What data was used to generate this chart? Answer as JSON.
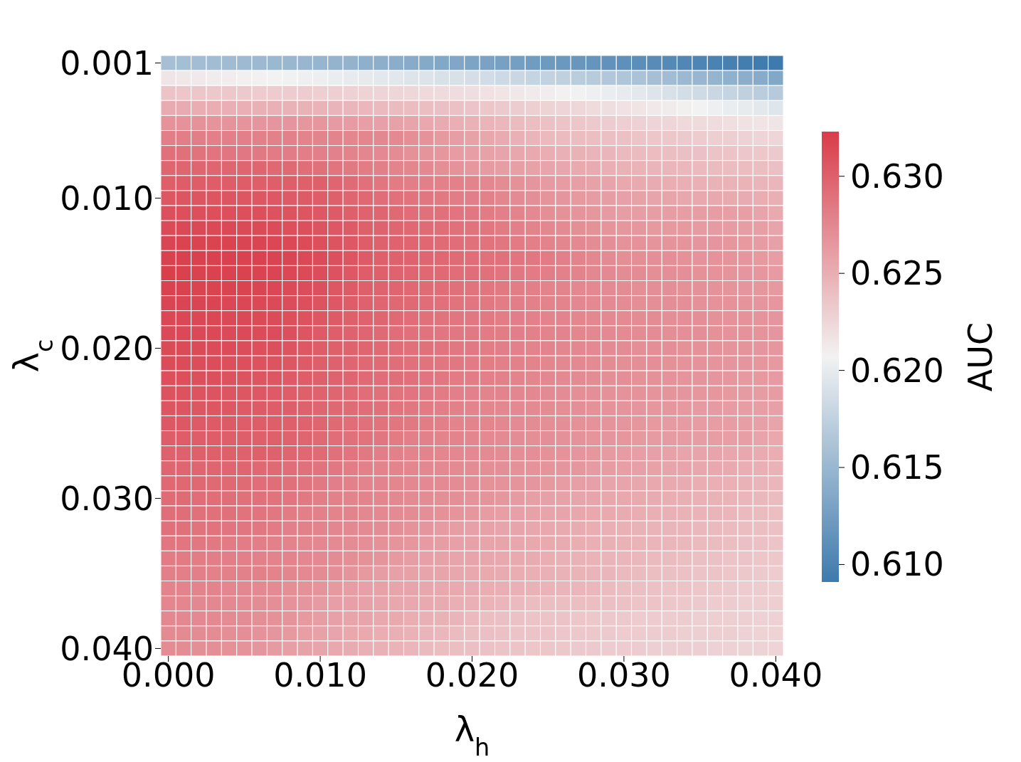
{
  "chart_data": {
    "type": "heatmap",
    "xlabel": "λ$_{h}$",
    "ylabel": "λ$_{c}$",
    "clabel": "AUC",
    "categories": [
      "0.000",
      null,
      null,
      null,
      null,
      null,
      null,
      null,
      null,
      null,
      "0.010",
      null,
      null,
      null,
      null,
      null,
      null,
      null,
      null,
      null,
      "0.020",
      null,
      null,
      null,
      null,
      null,
      null,
      null,
      null,
      null,
      "0.030",
      null,
      null,
      null,
      null,
      null,
      null,
      null,
      null,
      null,
      "0.040"
    ],
    "y_categories": [
      "0.001",
      null,
      null,
      null,
      null,
      null,
      null,
      null,
      null,
      "0.010",
      null,
      null,
      null,
      null,
      null,
      null,
      null,
      null,
      null,
      "0.020",
      null,
      null,
      null,
      null,
      null,
      null,
      null,
      null,
      null,
      "0.030",
      null,
      null,
      null,
      null,
      null,
      null,
      null,
      null,
      null,
      "0.040"
    ],
    "clim": [
      0.6091,
      0.6323
    ],
    "cticks": [
      {
        "value": 0.61,
        "label": "0.610"
      },
      {
        "value": 0.615,
        "label": "0.615"
      },
      {
        "value": 0.62,
        "label": "0.620"
      },
      {
        "value": 0.625,
        "label": "0.625"
      },
      {
        "value": 0.63,
        "label": "0.630"
      }
    ],
    "cells": [
      [
        0.6158,
        0.6157,
        0.6156,
        0.6155,
        0.6154,
        0.6153,
        0.6152,
        0.6151,
        0.615,
        0.6149,
        0.6148,
        0.6146,
        0.6145,
        0.6143,
        0.6142,
        0.614,
        0.6138,
        0.6137,
        0.6135,
        0.6134,
        0.6132,
        0.613,
        0.6128,
        0.6126,
        0.6124,
        0.6122,
        0.612,
        0.6118,
        0.6116,
        0.6114,
        0.6112,
        0.611,
        0.6108,
        0.6106,
        0.6104,
        0.6102,
        0.6099,
        0.6097,
        0.6095,
        0.6093,
        0.6091
      ],
      [
        0.6215,
        0.6214,
        0.6213,
        0.6211,
        0.621,
        0.6209,
        0.6208,
        0.6207,
        0.6206,
        0.6204,
        0.6203,
        0.6202,
        0.62,
        0.6199,
        0.6197,
        0.6196,
        0.6194,
        0.6193,
        0.6191,
        0.619,
        0.6188,
        0.6186,
        0.6183,
        0.6181,
        0.6178,
        0.6176,
        0.6174,
        0.6171,
        0.6169,
        0.6166,
        0.6164,
        0.6161,
        0.6158,
        0.6155,
        0.6152,
        0.6149,
        0.6147,
        0.6144,
        0.6141,
        0.6138,
        0.6135
      ],
      [
        0.6236,
        0.6235,
        0.6235,
        0.6234,
        0.6234,
        0.6233,
        0.6232,
        0.6232,
        0.6231,
        0.6231,
        0.623,
        0.6229,
        0.6228,
        0.6227,
        0.6226,
        0.6225,
        0.6224,
        0.6223,
        0.6222,
        0.6221,
        0.622,
        0.6218,
        0.6216,
        0.6214,
        0.6212,
        0.621,
        0.6208,
        0.6206,
        0.6204,
        0.6202,
        0.62,
        0.6197,
        0.6194,
        0.619,
        0.6187,
        0.6184,
        0.6181,
        0.6178,
        0.6174,
        0.6171,
        0.6168
      ],
      [
        0.6252,
        0.6252,
        0.6251,
        0.6251,
        0.625,
        0.625,
        0.6249,
        0.6249,
        0.6248,
        0.6248,
        0.6247,
        0.6246,
        0.6245,
        0.6244,
        0.6243,
        0.6242,
        0.6241,
        0.624,
        0.6239,
        0.6238,
        0.6237,
        0.6235,
        0.6233,
        0.6231,
        0.6229,
        0.6227,
        0.6226,
        0.6224,
        0.6222,
        0.622,
        0.6218,
        0.6216,
        0.6213,
        0.6211,
        0.6209,
        0.6207,
        0.6204,
        0.6202,
        0.62,
        0.6197,
        0.6195
      ],
      [
        0.6268,
        0.6268,
        0.6268,
        0.6267,
        0.6267,
        0.6267,
        0.6266,
        0.6266,
        0.6266,
        0.6265,
        0.6265,
        0.6263,
        0.6262,
        0.626,
        0.6259,
        0.6258,
        0.6256,
        0.6254,
        0.6252,
        0.625,
        0.6248,
        0.6246,
        0.6244,
        0.6242,
        0.624,
        0.6238,
        0.6237,
        0.6235,
        0.6233,
        0.6231,
        0.6229,
        0.6228,
        0.6226,
        0.6225,
        0.6223,
        0.6222,
        0.6221,
        0.6219,
        0.6218,
        0.6216,
        0.6215
      ],
      [
        0.6281,
        0.6281,
        0.6281,
        0.628,
        0.628,
        0.628,
        0.6279,
        0.6279,
        0.6279,
        0.6278,
        0.6278,
        0.6277,
        0.6276,
        0.6276,
        0.6275,
        0.6274,
        0.6271,
        0.6268,
        0.6264,
        0.6261,
        0.6258,
        0.6255,
        0.6252,
        0.6249,
        0.6246,
        0.6243,
        0.6242,
        0.6241,
        0.624,
        0.6239,
        0.6238,
        0.6237,
        0.6235,
        0.6234,
        0.6233,
        0.6232,
        0.623,
        0.6229,
        0.6228,
        0.6226,
        0.6225
      ],
      [
        0.629,
        0.6289,
        0.6288,
        0.6287,
        0.6286,
        0.6285,
        0.6284,
        0.6283,
        0.6282,
        0.6281,
        0.628,
        0.6279,
        0.6277,
        0.6276,
        0.6274,
        0.6272,
        0.6269,
        0.6267,
        0.6265,
        0.6262,
        0.626,
        0.6258,
        0.6256,
        0.6255,
        0.6253,
        0.6251,
        0.6249,
        0.6248,
        0.6246,
        0.6245,
        0.6243,
        0.6242,
        0.6241,
        0.624,
        0.6239,
        0.6238,
        0.6237,
        0.6236,
        0.6235,
        0.6234,
        0.6233
      ],
      [
        0.6297,
        0.6297,
        0.6297,
        0.6297,
        0.6296,
        0.6296,
        0.6296,
        0.6295,
        0.6294,
        0.6292,
        0.629,
        0.6287,
        0.6284,
        0.6282,
        0.628,
        0.6278,
        0.6276,
        0.6274,
        0.6271,
        0.6268,
        0.6265,
        0.6263,
        0.6261,
        0.626,
        0.6258,
        0.6257,
        0.6255,
        0.6253,
        0.6252,
        0.625,
        0.6248,
        0.6247,
        0.6246,
        0.6245,
        0.6244,
        0.6243,
        0.6242,
        0.6241,
        0.6241,
        0.624,
        0.6239
      ],
      [
        0.6301,
        0.6302,
        0.6302,
        0.6302,
        0.6302,
        0.6302,
        0.6301,
        0.6301,
        0.6301,
        0.63,
        0.63,
        0.6297,
        0.6293,
        0.6289,
        0.6286,
        0.6283,
        0.6281,
        0.628,
        0.6279,
        0.6279,
        0.6278,
        0.6275,
        0.6272,
        0.6269,
        0.6266,
        0.6263,
        0.6262,
        0.626,
        0.6258,
        0.6256,
        0.6254,
        0.6253,
        0.6252,
        0.6251,
        0.625,
        0.6249,
        0.6248,
        0.6247,
        0.6247,
        0.6246,
        0.6245
      ],
      [
        0.6306,
        0.6307,
        0.6307,
        0.6307,
        0.6307,
        0.6306,
        0.6306,
        0.6305,
        0.6304,
        0.6303,
        0.6302,
        0.63,
        0.6297,
        0.6295,
        0.6292,
        0.629,
        0.6288,
        0.6286,
        0.6284,
        0.6282,
        0.6281,
        0.6279,
        0.6276,
        0.6273,
        0.627,
        0.6267,
        0.6266,
        0.6264,
        0.6262,
        0.6261,
        0.6259,
        0.6258,
        0.6257,
        0.6256,
        0.6255,
        0.6254,
        0.6254,
        0.6253,
        0.6252,
        0.6251,
        0.625
      ],
      [
        0.631,
        0.6311,
        0.6311,
        0.6311,
        0.6311,
        0.6311,
        0.631,
        0.6309,
        0.6308,
        0.6307,
        0.6305,
        0.6303,
        0.63,
        0.6298,
        0.6296,
        0.6294,
        0.6292,
        0.629,
        0.6289,
        0.6287,
        0.6285,
        0.6283,
        0.628,
        0.6277,
        0.6274,
        0.6271,
        0.6269,
        0.6267,
        0.6265,
        0.6263,
        0.6261,
        0.6261,
        0.6261,
        0.6261,
        0.6261,
        0.6261,
        0.6261,
        0.626,
        0.626,
        0.6257,
        0.6253
      ],
      [
        0.6314,
        0.6315,
        0.6315,
        0.6315,
        0.6315,
        0.6314,
        0.6314,
        0.6313,
        0.6311,
        0.631,
        0.6308,
        0.6305,
        0.6303,
        0.63,
        0.6298,
        0.6297,
        0.6295,
        0.6293,
        0.6292,
        0.629,
        0.6288,
        0.6286,
        0.6283,
        0.628,
        0.6277,
        0.6275,
        0.6273,
        0.6271,
        0.6269,
        0.6267,
        0.6265,
        0.6265,
        0.6264,
        0.6264,
        0.6264,
        0.6263,
        0.6263,
        0.6262,
        0.6261,
        0.626,
        0.6256
      ],
      [
        0.6317,
        0.6318,
        0.6318,
        0.6318,
        0.6318,
        0.6317,
        0.6317,
        0.6316,
        0.6315,
        0.6313,
        0.6311,
        0.6308,
        0.6305,
        0.6302,
        0.6299,
        0.6298,
        0.6296,
        0.6295,
        0.6293,
        0.6292,
        0.629,
        0.6288,
        0.6286,
        0.6283,
        0.628,
        0.6278,
        0.6276,
        0.6274,
        0.6272,
        0.627,
        0.6268,
        0.6268,
        0.6267,
        0.6267,
        0.6267,
        0.6266,
        0.6266,
        0.6265,
        0.6264,
        0.6262,
        0.6259
      ],
      [
        0.632,
        0.632,
        0.632,
        0.632,
        0.632,
        0.6319,
        0.6319,
        0.6318,
        0.6317,
        0.6315,
        0.6313,
        0.631,
        0.6307,
        0.6304,
        0.63,
        0.6299,
        0.6298,
        0.6296,
        0.6295,
        0.6293,
        0.6292,
        0.629,
        0.6289,
        0.6287,
        0.6285,
        0.6283,
        0.628,
        0.6277,
        0.6275,
        0.6273,
        0.6271,
        0.6271,
        0.627,
        0.627,
        0.6269,
        0.6268,
        0.6268,
        0.6267,
        0.6266,
        0.6264,
        0.6261
      ],
      [
        0.6322,
        0.632,
        0.6319,
        0.6319,
        0.6319,
        0.6319,
        0.6318,
        0.6317,
        0.6316,
        0.6314,
        0.6312,
        0.6309,
        0.6305,
        0.6302,
        0.63,
        0.6298,
        0.6297,
        0.6295,
        0.6294,
        0.6292,
        0.6291,
        0.6289,
        0.6287,
        0.6285,
        0.6283,
        0.6281,
        0.6279,
        0.6277,
        0.6275,
        0.6274,
        0.6272,
        0.6272,
        0.6271,
        0.627,
        0.627,
        0.6269,
        0.6268,
        0.6267,
        0.6266,
        0.6265,
        0.6263
      ],
      [
        0.6319,
        0.6319,
        0.6318,
        0.6318,
        0.6318,
        0.6318,
        0.6317,
        0.6316,
        0.6314,
        0.6312,
        0.631,
        0.6306,
        0.6303,
        0.63,
        0.6298,
        0.6297,
        0.6295,
        0.6293,
        0.6292,
        0.629,
        0.6288,
        0.6286,
        0.6284,
        0.6282,
        0.628,
        0.6278,
        0.6277,
        0.6275,
        0.6274,
        0.6273,
        0.6272,
        0.6271,
        0.6271,
        0.627,
        0.6269,
        0.6269,
        0.6268,
        0.6267,
        0.6266,
        0.6265,
        0.6264
      ],
      [
        0.6317,
        0.6317,
        0.6317,
        0.6317,
        0.6316,
        0.6316,
        0.6315,
        0.6314,
        0.6312,
        0.631,
        0.6308,
        0.6305,
        0.6302,
        0.6299,
        0.6297,
        0.6295,
        0.6294,
        0.6292,
        0.629,
        0.6288,
        0.6286,
        0.6284,
        0.6282,
        0.6281,
        0.6279,
        0.6278,
        0.6277,
        0.6275,
        0.6274,
        0.6273,
        0.6272,
        0.6271,
        0.6271,
        0.627,
        0.627,
        0.6269,
        0.6268,
        0.6268,
        0.6267,
        0.6266,
        0.6265
      ],
      [
        0.6316,
        0.6316,
        0.6316,
        0.6316,
        0.6315,
        0.6315,
        0.6314,
        0.6313,
        0.6311,
        0.6309,
        0.6306,
        0.6303,
        0.63,
        0.6298,
        0.6296,
        0.6294,
        0.6292,
        0.629,
        0.6288,
        0.6286,
        0.6285,
        0.6284,
        0.6282,
        0.6281,
        0.6279,
        0.6278,
        0.6277,
        0.6276,
        0.6275,
        0.6274,
        0.6273,
        0.6272,
        0.6272,
        0.6271,
        0.627,
        0.627,
        0.6269,
        0.6268,
        0.6268,
        0.6267,
        0.6266
      ],
      [
        0.6315,
        0.6315,
        0.6315,
        0.6315,
        0.6314,
        0.6314,
        0.6313,
        0.6312,
        0.631,
        0.6307,
        0.6304,
        0.6301,
        0.6298,
        0.6296,
        0.6294,
        0.6292,
        0.629,
        0.6288,
        0.6286,
        0.6285,
        0.6284,
        0.6283,
        0.6282,
        0.6281,
        0.6279,
        0.6278,
        0.6277,
        0.6276,
        0.6275,
        0.6274,
        0.6273,
        0.6272,
        0.6272,
        0.6271,
        0.627,
        0.627,
        0.6269,
        0.6268,
        0.6268,
        0.6267,
        0.6266
      ],
      [
        0.6314,
        0.6314,
        0.6314,
        0.6313,
        0.6313,
        0.6312,
        0.6311,
        0.631,
        0.6308,
        0.6305,
        0.6302,
        0.63,
        0.6298,
        0.6296,
        0.6294,
        0.6292,
        0.629,
        0.6289,
        0.6287,
        0.6285,
        0.6284,
        0.6282,
        0.6281,
        0.6279,
        0.6278,
        0.6277,
        0.6276,
        0.6275,
        0.6274,
        0.6273,
        0.6272,
        0.6271,
        0.6271,
        0.627,
        0.6269,
        0.6269,
        0.6268,
        0.6267,
        0.6267,
        0.6266,
        0.6265
      ],
      [
        0.6313,
        0.6313,
        0.6312,
        0.6312,
        0.6311,
        0.631,
        0.6309,
        0.6308,
        0.6306,
        0.6304,
        0.6301,
        0.6299,
        0.6297,
        0.6295,
        0.6293,
        0.6291,
        0.6289,
        0.6288,
        0.6286,
        0.6285,
        0.6283,
        0.6282,
        0.628,
        0.6279,
        0.6278,
        0.6276,
        0.6275,
        0.6274,
        0.6273,
        0.6272,
        0.6271,
        0.627,
        0.627,
        0.6269,
        0.6268,
        0.6268,
        0.6267,
        0.6266,
        0.6266,
        0.6265,
        0.6264
      ],
      [
        0.6311,
        0.6311,
        0.631,
        0.631,
        0.6309,
        0.6308,
        0.6307,
        0.6306,
        0.6304,
        0.6302,
        0.63,
        0.6298,
        0.6296,
        0.6294,
        0.6292,
        0.6291,
        0.6289,
        0.6287,
        0.6285,
        0.6283,
        0.6282,
        0.628,
        0.6279,
        0.6277,
        0.6276,
        0.6275,
        0.6274,
        0.6273,
        0.6272,
        0.6271,
        0.627,
        0.6269,
        0.6269,
        0.6268,
        0.6267,
        0.6267,
        0.6266,
        0.6265,
        0.6264,
        0.6264,
        0.6263
      ],
      [
        0.6309,
        0.6309,
        0.6308,
        0.6308,
        0.6307,
        0.6306,
        0.6305,
        0.6304,
        0.6302,
        0.63,
        0.6298,
        0.6296,
        0.6294,
        0.6292,
        0.629,
        0.6288,
        0.6287,
        0.6285,
        0.6283,
        0.628,
        0.6279,
        0.6278,
        0.6277,
        0.6276,
        0.6275,
        0.6273,
        0.6272,
        0.6271,
        0.627,
        0.6269,
        0.6268,
        0.6268,
        0.6267,
        0.6267,
        0.6266,
        0.6265,
        0.6265,
        0.6264,
        0.6263,
        0.6262,
        0.6262
      ],
      [
        0.6307,
        0.6307,
        0.6306,
        0.6306,
        0.6305,
        0.6304,
        0.6303,
        0.6302,
        0.6301,
        0.6299,
        0.6297,
        0.6295,
        0.6293,
        0.6291,
        0.6289,
        0.6287,
        0.6285,
        0.6283,
        0.6281,
        0.6279,
        0.6278,
        0.6276,
        0.6275,
        0.6274,
        0.6273,
        0.6272,
        0.6271,
        0.627,
        0.6269,
        0.6268,
        0.6267,
        0.6266,
        0.6265,
        0.6265,
        0.6264,
        0.6263,
        0.6263,
        0.6262,
        0.6261,
        0.626,
        0.6259
      ],
      [
        0.6305,
        0.6305,
        0.6304,
        0.6304,
        0.6303,
        0.6302,
        0.6302,
        0.6301,
        0.63,
        0.6298,
        0.6296,
        0.6294,
        0.6292,
        0.629,
        0.6288,
        0.6286,
        0.6284,
        0.6282,
        0.628,
        0.6278,
        0.6277,
        0.6276,
        0.6275,
        0.6273,
        0.6272,
        0.6271,
        0.627,
        0.6269,
        0.6268,
        0.6267,
        0.6266,
        0.6265,
        0.6264,
        0.6263,
        0.6263,
        0.6262,
        0.6261,
        0.6261,
        0.626,
        0.6259,
        0.6257
      ],
      [
        0.6302,
        0.6302,
        0.6302,
        0.6302,
        0.6301,
        0.6301,
        0.63,
        0.63,
        0.6298,
        0.6296,
        0.6294,
        0.6292,
        0.629,
        0.6288,
        0.6286,
        0.6283,
        0.628,
        0.6279,
        0.6278,
        0.6277,
        0.6276,
        0.6274,
        0.6273,
        0.6272,
        0.6271,
        0.627,
        0.6269,
        0.6268,
        0.6267,
        0.6266,
        0.6265,
        0.6264,
        0.6263,
        0.6263,
        0.6262,
        0.6261,
        0.6261,
        0.626,
        0.626,
        0.6257,
        0.6254
      ],
      [
        0.6299,
        0.6299,
        0.63,
        0.63,
        0.63,
        0.6299,
        0.63,
        0.6299,
        0.6297,
        0.6295,
        0.6293,
        0.629,
        0.6287,
        0.6284,
        0.6281,
        0.6279,
        0.6278,
        0.6277,
        0.6276,
        0.6275,
        0.6274,
        0.6273,
        0.6272,
        0.6271,
        0.627,
        0.6269,
        0.6268,
        0.6266,
        0.6265,
        0.6263,
        0.6262,
        0.626,
        0.6259,
        0.6258,
        0.6257,
        0.6257,
        0.6256,
        0.6255,
        0.6254,
        0.6252,
        0.6251
      ],
      [
        0.6297,
        0.6297,
        0.6297,
        0.6297,
        0.6296,
        0.6296,
        0.6295,
        0.6294,
        0.6292,
        0.629,
        0.6288,
        0.6285,
        0.6282,
        0.6279,
        0.6278,
        0.6277,
        0.6276,
        0.6275,
        0.6274,
        0.6273,
        0.6272,
        0.6271,
        0.627,
        0.6269,
        0.6268,
        0.6267,
        0.6266,
        0.6265,
        0.6263,
        0.6262,
        0.626,
        0.6259,
        0.6258,
        0.6257,
        0.6256,
        0.6255,
        0.6254,
        0.6253,
        0.6251,
        0.625,
        0.6248
      ],
      [
        0.6295,
        0.6295,
        0.6295,
        0.6294,
        0.6294,
        0.6293,
        0.6292,
        0.6291,
        0.6289,
        0.6287,
        0.6284,
        0.6281,
        0.6279,
        0.6278,
        0.6277,
        0.6276,
        0.6275,
        0.6274,
        0.6273,
        0.6272,
        0.6271,
        0.6269,
        0.6268,
        0.6267,
        0.6266,
        0.6264,
        0.6262,
        0.626,
        0.6259,
        0.6257,
        0.6256,
        0.6255,
        0.6254,
        0.6253,
        0.6252,
        0.6251,
        0.625,
        0.6249,
        0.6248,
        0.6246,
        0.6245
      ],
      [
        0.6293,
        0.6293,
        0.6292,
        0.6292,
        0.6291,
        0.629,
        0.6289,
        0.6288,
        0.6286,
        0.6284,
        0.6281,
        0.6279,
        0.6278,
        0.6277,
        0.6276,
        0.6275,
        0.6273,
        0.6272,
        0.6271,
        0.627,
        0.6268,
        0.6267,
        0.6265,
        0.6263,
        0.626,
        0.6259,
        0.6258,
        0.6257,
        0.6256,
        0.6255,
        0.6254,
        0.6253,
        0.6252,
        0.6251,
        0.625,
        0.6249,
        0.6248,
        0.6247,
        0.6245,
        0.6244,
        0.6242
      ],
      [
        0.6291,
        0.6291,
        0.629,
        0.629,
        0.6289,
        0.6288,
        0.6287,
        0.6285,
        0.6283,
        0.628,
        0.6279,
        0.6278,
        0.6277,
        0.6275,
        0.6274,
        0.6273,
        0.6272,
        0.627,
        0.6269,
        0.6267,
        0.6265,
        0.6262,
        0.626,
        0.6259,
        0.6258,
        0.6257,
        0.6256,
        0.6255,
        0.6254,
        0.6253,
        0.6252,
        0.6251,
        0.625,
        0.6249,
        0.6248,
        0.6247,
        0.6246,
        0.6245,
        0.6243,
        0.6242,
        0.624
      ],
      [
        0.6289,
        0.6289,
        0.6288,
        0.6288,
        0.6287,
        0.6286,
        0.6285,
        0.6283,
        0.628,
        0.6279,
        0.6278,
        0.6276,
        0.6275,
        0.6273,
        0.6272,
        0.627,
        0.6268,
        0.6266,
        0.6263,
        0.6261,
        0.6259,
        0.6258,
        0.6257,
        0.6256,
        0.6255,
        0.6254,
        0.6253,
        0.6252,
        0.6251,
        0.625,
        0.6249,
        0.6248,
        0.6247,
        0.6246,
        0.6245,
        0.6244,
        0.6243,
        0.6242,
        0.6241,
        0.624,
        0.6238
      ],
      [
        0.6286,
        0.6286,
        0.6285,
        0.6284,
        0.6283,
        0.6282,
        0.6281,
        0.6279,
        0.6278,
        0.6276,
        0.6275,
        0.6273,
        0.6272,
        0.627,
        0.6269,
        0.6267,
        0.6265,
        0.6263,
        0.6261,
        0.6259,
        0.6258,
        0.6257,
        0.6256,
        0.6255,
        0.6254,
        0.6253,
        0.6252,
        0.6251,
        0.625,
        0.6249,
        0.6248,
        0.6247,
        0.6246,
        0.6245,
        0.6244,
        0.6243,
        0.6242,
        0.624,
        0.6239,
        0.6238,
        0.6236
      ],
      [
        0.6283,
        0.6283,
        0.6282,
        0.6281,
        0.6281,
        0.628,
        0.6279,
        0.6278,
        0.6277,
        0.6275,
        0.6274,
        0.6272,
        0.6271,
        0.6269,
        0.6267,
        0.6264,
        0.6261,
        0.6259,
        0.6258,
        0.6257,
        0.6256,
        0.6255,
        0.6254,
        0.6253,
        0.6252,
        0.6251,
        0.6249,
        0.6248,
        0.6247,
        0.6246,
        0.6245,
        0.6244,
        0.6243,
        0.6242,
        0.624,
        0.6239,
        0.6238,
        0.6237,
        0.6236,
        0.6235,
        0.6234
      ],
      [
        0.628,
        0.628,
        0.628,
        0.6279,
        0.6279,
        0.6279,
        0.6279,
        0.6278,
        0.6276,
        0.6274,
        0.6272,
        0.627,
        0.6267,
        0.6264,
        0.6261,
        0.6259,
        0.6258,
        0.6257,
        0.6256,
        0.6255,
        0.6254,
        0.6253,
        0.6252,
        0.6251,
        0.625,
        0.6249,
        0.6248,
        0.6247,
        0.6246,
        0.6245,
        0.6243,
        0.6242,
        0.624,
        0.6239,
        0.6238,
        0.6237,
        0.6236,
        0.6235,
        0.6234,
        0.6233,
        0.6232
      ],
      [
        0.6278,
        0.6278,
        0.6277,
        0.6277,
        0.6276,
        0.6275,
        0.6274,
        0.6273,
        0.6271,
        0.6269,
        0.6267,
        0.6264,
        0.6261,
        0.6259,
        0.6258,
        0.6257,
        0.6256,
        0.6255,
        0.6254,
        0.6253,
        0.6252,
        0.6251,
        0.625,
        0.6249,
        0.6248,
        0.6247,
        0.6246,
        0.6245,
        0.6244,
        0.6242,
        0.624,
        0.6239,
        0.6238,
        0.6237,
        0.6236,
        0.6235,
        0.6234,
        0.6233,
        0.6232,
        0.6231,
        0.623
      ],
      [
        0.6276,
        0.6276,
        0.6275,
        0.6275,
        0.6274,
        0.6273,
        0.6272,
        0.627,
        0.6268,
        0.6266,
        0.6263,
        0.626,
        0.6259,
        0.6258,
        0.6257,
        0.6255,
        0.6254,
        0.6253,
        0.6252,
        0.625,
        0.6249,
        0.6247,
        0.6245,
        0.6243,
        0.6241,
        0.624,
        0.624,
        0.624,
        0.624,
        0.6239,
        0.6238,
        0.6237,
        0.6236,
        0.6235,
        0.6234,
        0.6233,
        0.6232,
        0.6231,
        0.623,
        0.6229,
        0.6229
      ],
      [
        0.6275,
        0.6275,
        0.6274,
        0.6274,
        0.6273,
        0.6272,
        0.6271,
        0.6269,
        0.6267,
        0.6264,
        0.6261,
        0.6259,
        0.6257,
        0.6256,
        0.6254,
        0.6253,
        0.6251,
        0.6249,
        0.6248,
        0.6246,
        0.6243,
        0.624,
        0.6239,
        0.6238,
        0.6237,
        0.6237,
        0.6236,
        0.6235,
        0.6234,
        0.6234,
        0.6233,
        0.6232,
        0.6232,
        0.6231,
        0.6231,
        0.623,
        0.623,
        0.6229,
        0.6229,
        0.6228,
        0.6228
      ],
      [
        0.6273,
        0.6273,
        0.6272,
        0.6272,
        0.6271,
        0.627,
        0.6268,
        0.6266,
        0.6264,
        0.626,
        0.6258,
        0.6256,
        0.6254,
        0.6253,
        0.6251,
        0.625,
        0.6248,
        0.6246,
        0.6244,
        0.6242,
        0.624,
        0.6239,
        0.6238,
        0.6237,
        0.6236,
        0.6236,
        0.6235,
        0.6234,
        0.6234,
        0.6233,
        0.6232,
        0.6232,
        0.6231,
        0.6231,
        0.623,
        0.623,
        0.6229,
        0.6229,
        0.6228,
        0.6227,
        0.6227
      ],
      [
        0.6272,
        0.6272,
        0.6271,
        0.627,
        0.6269,
        0.6268,
        0.6266,
        0.6263,
        0.626,
        0.6258,
        0.6256,
        0.6254,
        0.6252,
        0.625,
        0.6249,
        0.6247,
        0.6245,
        0.6243,
        0.6241,
        0.624,
        0.6239,
        0.6238,
        0.6237,
        0.6236,
        0.6235,
        0.6235,
        0.6234,
        0.6233,
        0.6233,
        0.6232,
        0.6232,
        0.6231,
        0.623,
        0.623,
        0.6229,
        0.6229,
        0.6228,
        0.6228,
        0.6227,
        0.6227,
        0.6226
      ]
    ]
  }
}
